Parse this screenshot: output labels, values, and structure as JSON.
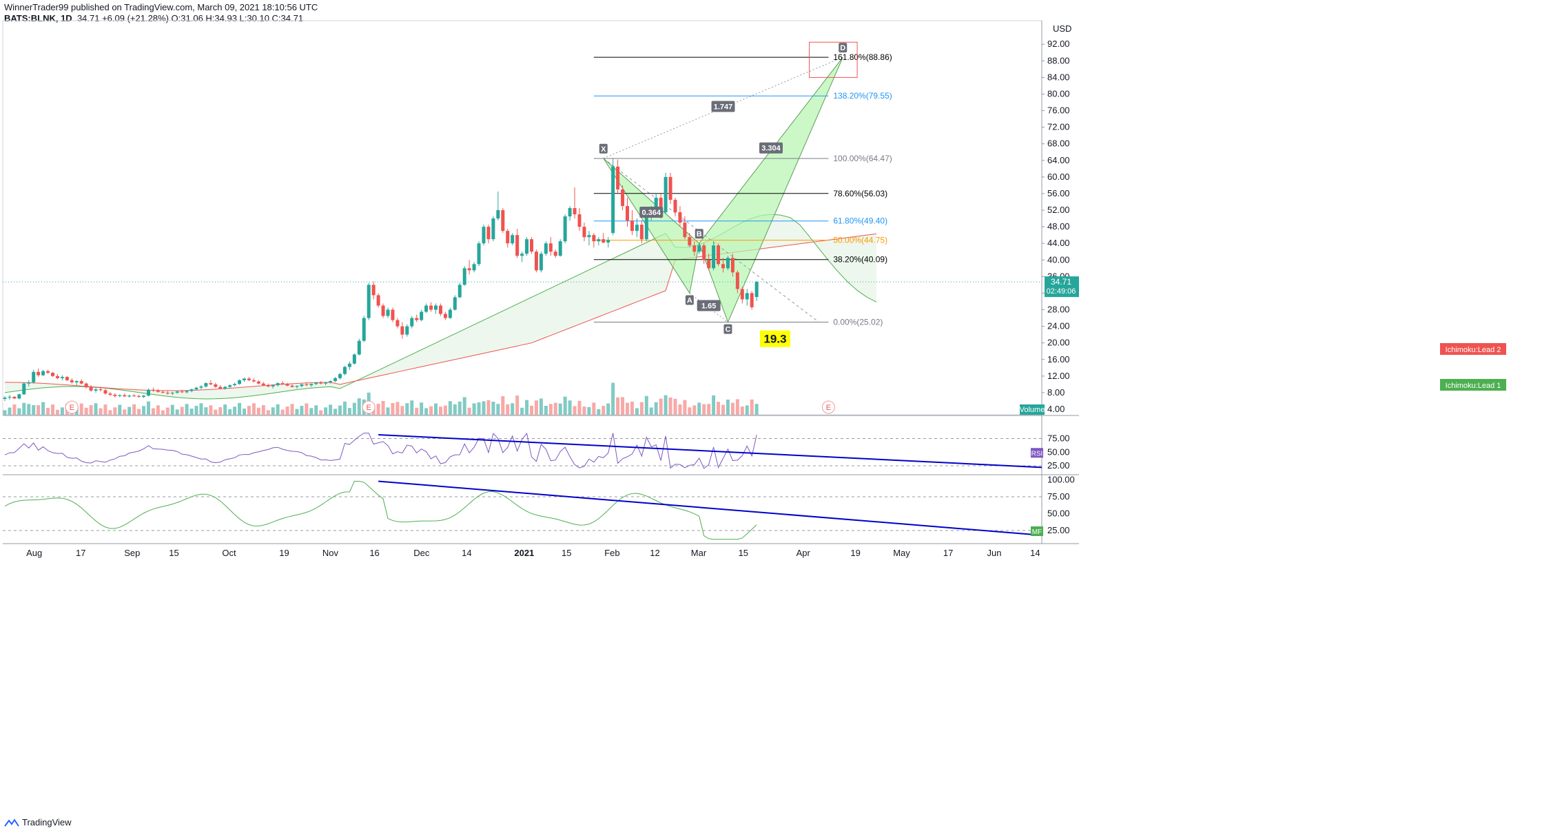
{
  "header": {
    "line1": "WinnerTrader99 published on TradingView.com, March 09, 2021 18:10:56 UTC",
    "symbol": "BATS:BLNK, 1D",
    "ohlc": "34.71 +6.09 (+21.28%) O:31.06 H:34.93 L:30.10 C:34.71"
  },
  "footer": {
    "brand": "TradingView"
  },
  "colors": {
    "up": "#26a69a",
    "down": "#ef5350",
    "volume_up": "#80cbc4",
    "volume_down": "#f7a9a7",
    "rsi": "#7e57c2",
    "mfi": "#4caf50",
    "trendline": "#0000cc",
    "cloud_green": "#4caf50",
    "cloud_red": "#ef5350",
    "pattern_fill": "#b7f5b0"
  },
  "chart_data": {
    "type": "candlestick",
    "currency": "USD",
    "price_axis": {
      "min": 0,
      "max": 96,
      "ticks": [
        "92.00",
        "88.00",
        "84.00",
        "80.00",
        "76.00",
        "72.00",
        "68.00",
        "64.00",
        "60.00",
        "56.00",
        "52.00",
        "48.00",
        "44.00",
        "40.00",
        "36.00",
        "32.00",
        "28.00",
        "24.00",
        "20.00",
        "16.00",
        "12.00",
        "8.00",
        "4.00"
      ]
    },
    "time_axis": [
      "Aug",
      "17",
      "Sep",
      "15",
      "Oct",
      "19",
      "Nov",
      "16",
      "Dec",
      "14",
      "2021",
      "15",
      "Feb",
      "12",
      "Mar",
      "15",
      "Apr",
      "19",
      "May",
      "17",
      "Jun",
      "14"
    ],
    "last_price": {
      "value": "34.71",
      "countdown": "02:49:06"
    },
    "candles": [
      [
        6.5,
        7.2,
        6.0,
        6.8
      ],
      [
        6.8,
        7.5,
        6.3,
        7.0
      ],
      [
        7.0,
        7.2,
        6.5,
        6.6
      ],
      [
        6.6,
        7.8,
        6.4,
        7.6
      ],
      [
        7.6,
        10.5,
        7.4,
        10.2
      ],
      [
        10.2,
        11.0,
        9.5,
        10.5
      ],
      [
        10.5,
        13.5,
        10.2,
        13.0
      ],
      [
        13.0,
        13.8,
        11.8,
        12.2
      ],
      [
        12.2,
        13.5,
        12.0,
        13.2
      ],
      [
        13.2,
        13.5,
        12.5,
        12.8
      ],
      [
        12.8,
        13.0,
        11.8,
        12.0
      ],
      [
        12.0,
        12.5,
        11.2,
        11.5
      ],
      [
        11.5,
        12.2,
        11.0,
        11.8
      ],
      [
        11.8,
        12.0,
        10.8,
        11.0
      ],
      [
        11.0,
        11.5,
        10.2,
        10.5
      ],
      [
        10.5,
        11.0,
        9.8,
        10.8
      ],
      [
        10.8,
        11.2,
        10.0,
        10.2
      ],
      [
        10.2,
        10.5,
        9.0,
        9.3
      ],
      [
        9.3,
        9.8,
        8.2,
        8.5
      ],
      [
        8.5,
        9.2,
        8.0,
        8.8
      ],
      [
        8.8,
        9.5,
        8.3,
        8.6
      ],
      [
        8.6,
        8.9,
        7.5,
        7.8
      ],
      [
        7.8,
        8.2,
        7.2,
        7.5
      ],
      [
        7.5,
        7.9,
        6.8,
        7.2
      ],
      [
        7.2,
        7.6,
        6.9,
        7.4
      ],
      [
        7.4,
        7.8,
        7.0,
        7.1
      ],
      [
        7.1,
        7.5,
        6.8,
        7.3
      ],
      [
        7.3,
        7.7,
        7.0,
        7.2
      ],
      [
        7.2,
        7.5,
        6.8,
        7.0
      ],
      [
        7.0,
        7.4,
        6.7,
        7.3
      ],
      [
        7.3,
        9.0,
        7.1,
        8.7
      ],
      [
        8.7,
        9.2,
        8.2,
        8.5
      ],
      [
        8.5,
        8.9,
        8.0,
        8.2
      ],
      [
        8.2,
        8.6,
        7.8,
        8.0
      ],
      [
        8.0,
        8.4,
        7.5,
        7.8
      ],
      [
        7.8,
        8.2,
        7.4,
        8.0
      ],
      [
        8.0,
        8.5,
        7.7,
        8.3
      ],
      [
        8.3,
        8.7,
        7.9,
        8.1
      ],
      [
        8.1,
        8.6,
        7.8,
        8.4
      ],
      [
        8.4,
        9.0,
        8.1,
        8.8
      ],
      [
        8.8,
        9.4,
        8.5,
        9.2
      ],
      [
        9.2,
        9.8,
        8.8,
        9.5
      ],
      [
        9.5,
        10.5,
        9.2,
        10.3
      ],
      [
        10.3,
        11.0,
        9.8,
        10.0
      ],
      [
        10.0,
        10.4,
        9.2,
        9.4
      ],
      [
        9.4,
        9.8,
        8.8,
        9.0
      ],
      [
        9.0,
        9.6,
        8.7,
        9.4
      ],
      [
        9.4,
        10.0,
        9.1,
        9.8
      ],
      [
        9.8,
        10.4,
        9.5,
        10.1
      ],
      [
        10.1,
        11.2,
        9.9,
        11.0
      ],
      [
        11.0,
        11.6,
        10.6,
        11.4
      ],
      [
        11.4,
        11.8,
        10.8,
        11.0
      ],
      [
        11.0,
        11.5,
        10.5,
        10.7
      ],
      [
        10.7,
        11.0,
        10.0,
        10.2
      ],
      [
        10.2,
        10.6,
        9.6,
        9.8
      ],
      [
        9.8,
        10.2,
        9.3,
        9.5
      ],
      [
        9.5,
        10.0,
        9.0,
        9.8
      ],
      [
        9.8,
        10.5,
        9.5,
        10.3
      ],
      [
        10.3,
        10.8,
        9.9,
        10.1
      ],
      [
        10.1,
        10.4,
        9.5,
        9.7
      ],
      [
        9.7,
        10.0,
        9.2,
        9.4
      ],
      [
        9.4,
        9.8,
        9.0,
        9.6
      ],
      [
        9.6,
        10.2,
        9.3,
        10.0
      ],
      [
        10.0,
        10.5,
        9.6,
        9.8
      ],
      [
        9.8,
        10.2,
        9.4,
        10.1
      ],
      [
        10.1,
        10.6,
        9.8,
        10.4
      ],
      [
        10.4,
        10.8,
        10.0,
        10.2
      ],
      [
        10.2,
        10.6,
        9.8,
        10.5
      ],
      [
        10.5,
        11.0,
        10.2,
        10.8
      ],
      [
        10.8,
        11.8,
        10.5,
        11.5
      ],
      [
        11.5,
        12.8,
        11.2,
        12.5
      ],
      [
        12.5,
        14.5,
        12.2,
        14.2
      ],
      [
        14.2,
        15.5,
        13.5,
        15.0
      ],
      [
        15.0,
        17.5,
        14.8,
        17.2
      ],
      [
        17.2,
        21.0,
        17.0,
        20.5
      ],
      [
        20.5,
        26.5,
        20.2,
        26.0
      ],
      [
        26.0,
        34.5,
        25.5,
        34.0
      ],
      [
        34.0,
        34.8,
        30.5,
        31.5
      ],
      [
        31.5,
        32.0,
        28.5,
        29.0
      ],
      [
        29.0,
        29.5,
        26.0,
        26.5
      ],
      [
        26.5,
        28.5,
        26.0,
        28.0
      ],
      [
        28.0,
        28.5,
        25.0,
        25.5
      ],
      [
        25.5,
        26.0,
        23.5,
        24.0
      ],
      [
        24.0,
        25.0,
        21.0,
        22.0
      ],
      [
        22.0,
        24.5,
        21.5,
        24.0
      ],
      [
        24.0,
        26.5,
        23.5,
        26.0
      ],
      [
        26.0,
        26.8,
        25.0,
        25.5
      ],
      [
        25.5,
        28.0,
        25.2,
        27.5
      ],
      [
        27.5,
        29.5,
        27.2,
        29.0
      ],
      [
        29.0,
        29.8,
        27.5,
        28.0
      ],
      [
        28.0,
        29.5,
        27.0,
        29.0
      ],
      [
        29.0,
        29.5,
        26.5,
        27.0
      ],
      [
        27.0,
        27.5,
        25.5,
        26.0
      ],
      [
        26.0,
        28.5,
        25.8,
        28.0
      ],
      [
        28.0,
        31.5,
        27.8,
        31.0
      ],
      [
        31.0,
        34.5,
        30.8,
        34.0
      ],
      [
        34.0,
        38.5,
        33.8,
        38.0
      ],
      [
        38.0,
        40.0,
        36.5,
        37.5
      ],
      [
        37.5,
        39.5,
        37.0,
        39.0
      ],
      [
        39.0,
        44.5,
        38.5,
        44.0
      ],
      [
        44.0,
        48.5,
        43.5,
        48.0
      ],
      [
        48.0,
        48.5,
        44.0,
        45.0
      ],
      [
        45.0,
        50.5,
        44.5,
        50.0
      ],
      [
        50.0,
        56.5,
        49.5,
        52.0
      ],
      [
        52.0,
        52.5,
        46.5,
        47.0
      ],
      [
        47.0,
        47.5,
        43.0,
        44.0
      ],
      [
        44.0,
        46.5,
        43.5,
        46.0
      ],
      [
        46.0,
        47.5,
        40.5,
        41.0
      ],
      [
        41.0,
        42.0,
        39.5,
        41.5
      ],
      [
        41.5,
        45.5,
        41.0,
        45.0
      ],
      [
        45.0,
        45.5,
        41.5,
        42.0
      ],
      [
        42.0,
        42.5,
        37.0,
        37.5
      ],
      [
        37.5,
        42.0,
        37.0,
        41.5
      ],
      [
        41.5,
        44.5,
        41.0,
        44.0
      ],
      [
        44.0,
        45.5,
        41.0,
        42.0
      ],
      [
        42.0,
        42.5,
        40.5,
        41.0
      ],
      [
        41.0,
        45.0,
        40.8,
        44.5
      ],
      [
        44.5,
        51.0,
        44.0,
        50.5
      ],
      [
        50.5,
        53.0,
        49.5,
        52.5
      ],
      [
        52.5,
        57.5,
        50.0,
        51.0
      ],
      [
        51.0,
        52.5,
        47.0,
        48.0
      ],
      [
        48.0,
        49.0,
        44.5,
        45.5
      ],
      [
        45.5,
        47.0,
        43.5,
        46.0
      ],
      [
        46.0,
        46.5,
        43.0,
        44.5
      ],
      [
        44.5,
        45.5,
        43.5,
        45.0
      ],
      [
        45.0,
        46.5,
        44.0,
        44.2
      ],
      [
        44.2,
        45.5,
        43.0,
        44.8
      ],
      [
        46.5,
        64.5,
        46.0,
        62.5
      ],
      [
        62.5,
        64.2,
        56.0,
        57.0
      ],
      [
        57.0,
        58.0,
        52.0,
        53.0
      ],
      [
        53.0,
        55.0,
        48.0,
        49.5
      ],
      [
        49.5,
        52.0,
        46.0,
        47.0
      ],
      [
        47.0,
        50.0,
        45.5,
        48.5
      ],
      [
        48.5,
        49.5,
        44.0,
        45.0
      ],
      [
        45.0,
        51.0,
        44.5,
        50.5
      ],
      [
        50.5,
        53.0,
        49.5,
        52.0
      ],
      [
        52.0,
        56.0,
        51.5,
        55.0
      ],
      [
        55.0,
        56.0,
        50.0,
        51.5
      ],
      [
        51.5,
        61.0,
        51.0,
        60.0
      ],
      [
        60.0,
        61.0,
        53.5,
        54.5
      ],
      [
        54.5,
        55.0,
        50.5,
        51.5
      ],
      [
        51.5,
        53.0,
        48.0,
        49.0
      ],
      [
        49.0,
        50.5,
        45.0,
        45.5
      ],
      [
        45.5,
        46.5,
        43.0,
        43.5
      ],
      [
        43.5,
        44.5,
        41.0,
        42.0
      ],
      [
        42.0,
        44.0,
        41.5,
        43.5
      ],
      [
        43.5,
        44.0,
        39.0,
        40.0
      ],
      [
        40.0,
        41.5,
        37.5,
        38.0
      ],
      [
        38.0,
        44.5,
        37.5,
        43.5
      ],
      [
        43.5,
        44.0,
        38.5,
        39.0
      ],
      [
        39.0,
        40.5,
        37.0,
        38.0
      ],
      [
        38.0,
        41.0,
        37.5,
        40.5
      ],
      [
        40.5,
        41.5,
        36.0,
        37.0
      ],
      [
        37.0,
        37.5,
        32.0,
        33.0
      ],
      [
        33.0,
        33.5,
        29.5,
        30.5
      ],
      [
        30.5,
        33.0,
        29.0,
        32.0
      ],
      [
        32.0,
        32.5,
        28.0,
        28.6
      ],
      [
        31.06,
        34.93,
        30.1,
        34.71
      ]
    ],
    "volume_label": "Volume",
    "ichimoku": {
      "lead1_label": "Ichimoku:Lead 1",
      "lead2_label": "Ichimoku:Lead 2"
    },
    "fib_levels": [
      {
        "label": "161.80%(88.86)",
        "price": 88.86,
        "color": "#000000"
      },
      {
        "label": "138.20%(79.55)",
        "price": 79.55,
        "color": "#2196f3"
      },
      {
        "label": "100.00%(64.47)",
        "price": 64.47,
        "color": "#787b86"
      },
      {
        "label": "78.60%(56.03)",
        "price": 56.03,
        "color": "#000000"
      },
      {
        "label": "61.80%(49.40)",
        "price": 49.4,
        "color": "#2196f3"
      },
      {
        "label": "50.00%(44.75)",
        "price": 44.75,
        "color": "#ff9800"
      },
      {
        "label": "38.20%(40.09)",
        "price": 40.09,
        "color": "#000000"
      },
      {
        "label": "0.00%(25.02)",
        "price": 25.02,
        "color": "#787b86"
      }
    ],
    "pattern_points": [
      {
        "label": "X",
        "bar": 125,
        "price": 64.5
      },
      {
        "label": "A",
        "bar": 143,
        "price": 32.0
      },
      {
        "label": "B",
        "bar": 145,
        "price": 44.0
      },
      {
        "label": "C",
        "bar": 151,
        "price": 25.0
      },
      {
        "label": "D",
        "bar": 175,
        "price": 88.86
      }
    ],
    "pattern_ratios": [
      {
        "label": "0.364",
        "bar": 135,
        "price": 51.5
      },
      {
        "label": "1.65",
        "bar": 147,
        "price": 29.0
      },
      {
        "label": "3.304",
        "bar": 160,
        "price": 67.0
      },
      {
        "label": "1.747",
        "bar": 150,
        "price": 77.0
      }
    ],
    "annotation": {
      "text": "19.3"
    },
    "earnings_marker": "E",
    "rsi": {
      "label": "RSI",
      "ticks": [
        "75.00",
        "50.00",
        "25.00"
      ]
    },
    "mfi": {
      "label": "MF",
      "ticks": [
        "100.00",
        "75.00",
        "50.00",
        "25.00"
      ]
    }
  }
}
